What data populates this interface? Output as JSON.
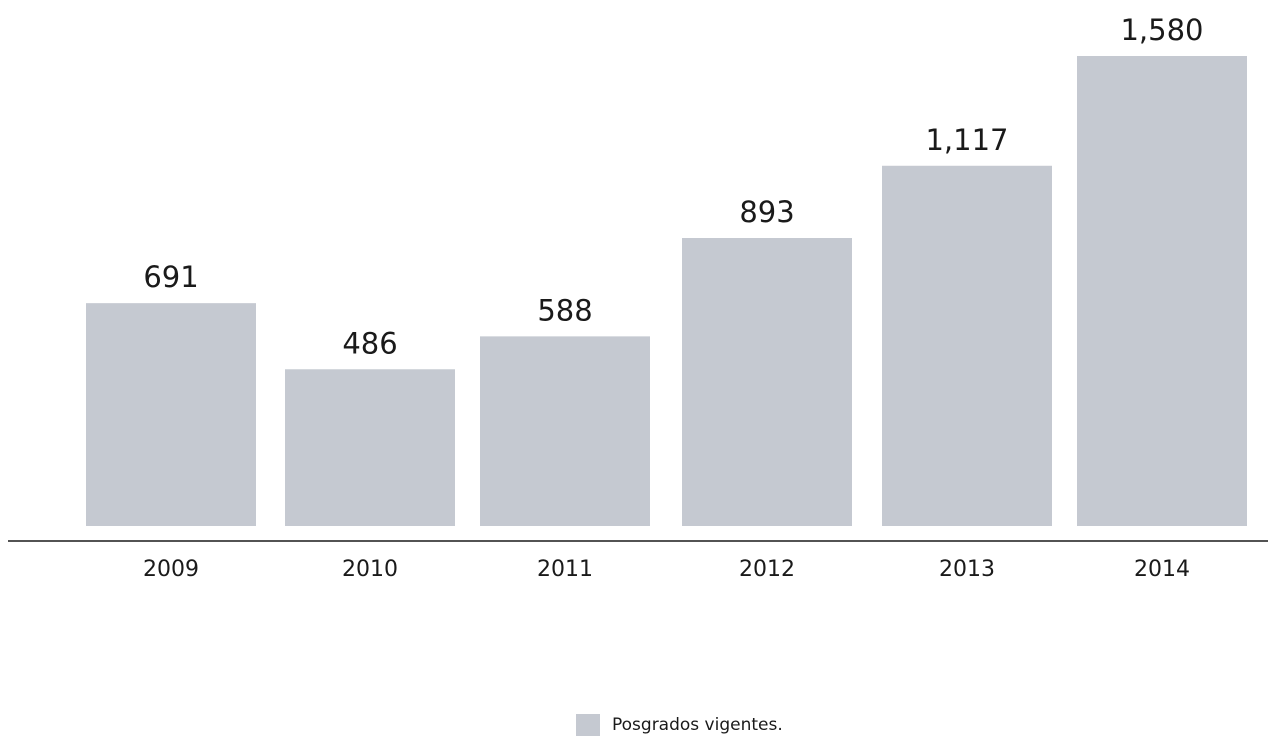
{
  "chart_data": {
    "type": "bar",
    "categories": [
      "2009",
      "2010",
      "2011",
      "2012",
      "2013",
      "2014"
    ],
    "series": [
      {
        "name": "Posgrados vigentes.",
        "values": [
          691,
          486,
          588,
          893,
          1117,
          1580
        ],
        "value_labels": [
          "691",
          "486",
          "588",
          "893",
          "1,117",
          "1,580"
        ],
        "color": "#c5c9d1"
      }
    ],
    "title": "",
    "xlabel": "",
    "ylabel": "",
    "legend_position": "bottom-center"
  },
  "legend": {
    "label": "Posgrados vigentes."
  }
}
